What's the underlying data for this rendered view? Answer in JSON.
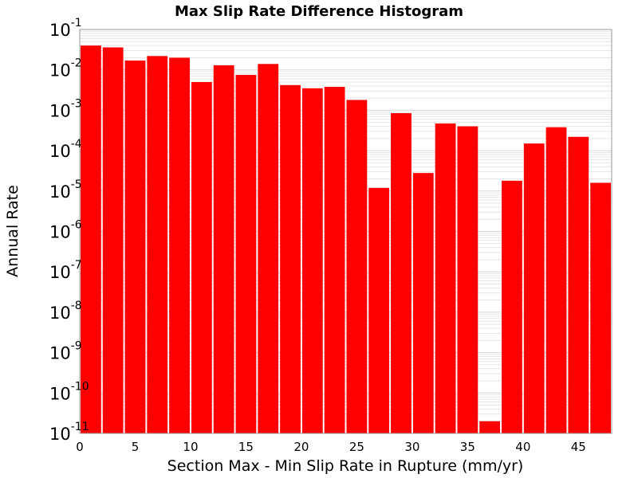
{
  "chart_data": {
    "type": "bar",
    "title": "Max Slip Rate Difference Histogram",
    "xlabel": "Section Max - Min Slip Rate in Rupture (mm/yr)",
    "ylabel": "Annual Rate",
    "xlim": [
      0,
      48
    ],
    "ylim": [
      1e-11,
      0.1
    ],
    "y_scale": "log",
    "bar_width": 2,
    "x_ticks": [
      "0",
      "5",
      "10",
      "15",
      "20",
      "25",
      "30",
      "35",
      "40",
      "45"
    ],
    "y_ticks": [
      {
        "base": "10",
        "exp": "-11"
      },
      {
        "base": "10",
        "exp": "-10"
      },
      {
        "base": "10",
        "exp": "-9"
      },
      {
        "base": "10",
        "exp": "-8"
      },
      {
        "base": "10",
        "exp": "-7"
      },
      {
        "base": "10",
        "exp": "-6"
      },
      {
        "base": "10",
        "exp": "-5"
      },
      {
        "base": "10",
        "exp": "-4"
      },
      {
        "base": "10",
        "exp": "-3"
      },
      {
        "base": "10",
        "exp": "-2"
      },
      {
        "base": "10",
        "exp": "-1"
      }
    ],
    "x": [
      1,
      3,
      5,
      7,
      9,
      11,
      13,
      15,
      17,
      19,
      21,
      23,
      25,
      27,
      29,
      31,
      33,
      35,
      37,
      39,
      41,
      43,
      45,
      47
    ],
    "values": [
      0.04,
      0.036,
      0.017,
      0.022,
      0.02,
      0.005,
      0.013,
      0.0075,
      0.014,
      0.0042,
      0.0035,
      0.0038,
      0.0018,
      1.2e-05,
      0.00085,
      2.8e-05,
      0.00047,
      0.0004,
      2e-11,
      1.8e-05,
      0.00015,
      0.00038,
      0.00022,
      1.6e-05
    ],
    "grid": true,
    "colors": {
      "bar": "#ff0000",
      "grid": "#e6e6e6",
      "axis": "#999999"
    }
  }
}
